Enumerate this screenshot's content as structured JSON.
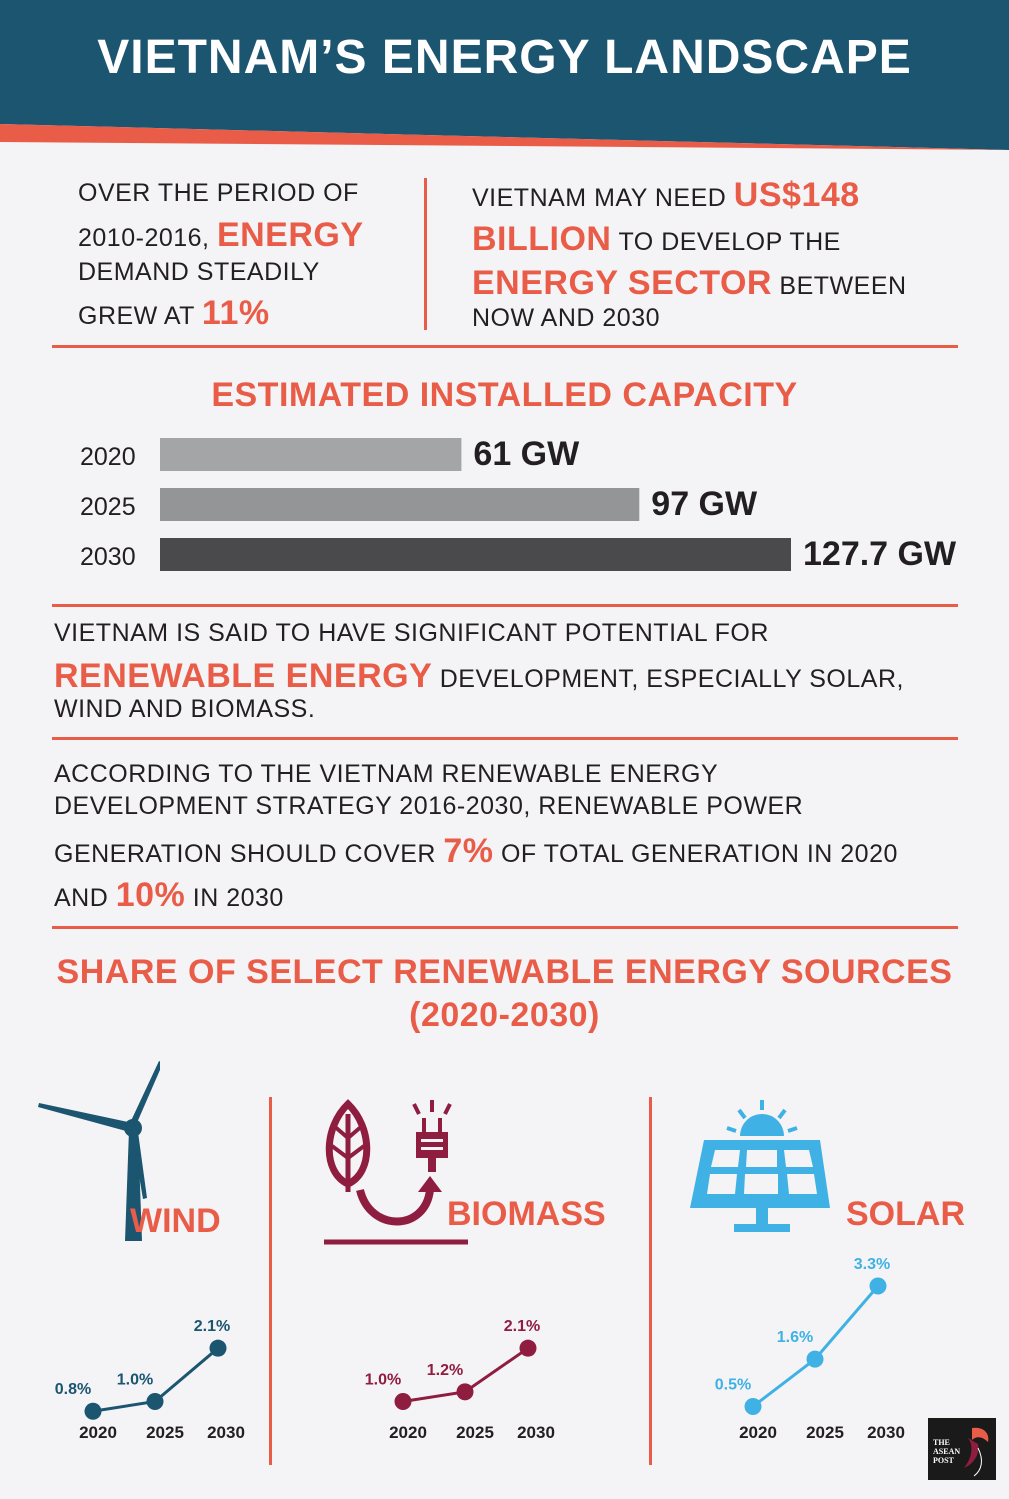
{
  "header": {
    "title": "VIETNAM’S ENERGY LANDSCAPE"
  },
  "facts": {
    "left": {
      "line1": "OVER THE PERIOD OF",
      "line2_pre": "2010-2016, ",
      "line2_acc": "ENERGY",
      "line3": "DEMAND STEADILY",
      "line4_pre": "GREW AT ",
      "line4_acc": "11%"
    },
    "right": {
      "line1_pre": "VIETNAM MAY NEED ",
      "line1_acc": "US$148",
      "line2_acc": "BILLION",
      "line2_post": " TO DEVELOP THE",
      "line3_acc": "ENERGY SECTOR",
      "line3_post": " BETWEEN",
      "line4": "NOW AND 2030"
    }
  },
  "capacity": {
    "title": "ESTIMATED INSTALLED CAPACITY"
  },
  "renewable": {
    "line1": "VIETNAM IS SAID TO HAVE SIGNIFICANT POTENTIAL FOR",
    "line2_acc": "RENEWABLE ENERGY",
    "line2_post": " DEVELOPMENT, ESPECIALLY SOLAR,",
    "line3": "WIND AND BIOMASS."
  },
  "strategy": {
    "line1": "ACCORDING TO THE VIETNAM RENEWABLE ENERGY",
    "line2": "DEVELOPMENT STRATEGY 2016-2030, RENEWABLE POWER",
    "line3_pre": "GENERATION SHOULD COVER ",
    "line3_acc": "7%",
    "line3_post": " OF TOTAL GENERATION IN 2020",
    "line4_pre": "AND ",
    "line4_acc": "10%",
    "line4_post": " IN 2030"
  },
  "share": {
    "title_line1": "SHARE OF SELECT RENEWABLE ENERGY SOURCES",
    "title_line2": "(2020-2030)"
  },
  "colors": {
    "header_bg": "#1b5570",
    "accent": "#e95d48",
    "bar_2020": "#a3a5a7",
    "bar_2025": "#939597",
    "bar_2030": "#4a4a4c",
    "wind": "#1b5570",
    "biomass": "#8f1d3f",
    "solar": "#3fb1e4"
  },
  "logo": {
    "text": "THE ASEAN POST"
  },
  "chart_data": [
    {
      "type": "bar",
      "orientation": "horizontal",
      "title": "ESTIMATED INSTALLED CAPACITY",
      "categories": [
        "2020",
        "2025",
        "2030"
      ],
      "values": [
        61,
        97,
        127.7
      ],
      "labels": [
        "61 GW",
        "97 GW",
        "127.7 GW"
      ],
      "unit": "GW",
      "xlim": [
        0,
        127.7
      ]
    },
    {
      "type": "line",
      "title": "WIND",
      "x": [
        "2020",
        "2025",
        "2030"
      ],
      "values": [
        0.8,
        1.0,
        2.1
      ],
      "labels": [
        "0.8%",
        "1.0%",
        "2.1%"
      ],
      "unit": "%",
      "ylim": [
        0,
        3.3
      ]
    },
    {
      "type": "line",
      "title": "BIOMASS",
      "x": [
        "2020",
        "2025",
        "2030"
      ],
      "values": [
        1.0,
        1.2,
        2.1
      ],
      "labels": [
        "1.0%",
        "1.2%",
        "2.1%"
      ],
      "unit": "%",
      "ylim": [
        0,
        3.3
      ]
    },
    {
      "type": "line",
      "title": "SOLAR",
      "x": [
        "2020",
        "2025",
        "2030"
      ],
      "values": [
        0.5,
        1.6,
        3.3
      ],
      "labels": [
        "0.5%",
        "1.6%",
        "3.3%"
      ],
      "unit": "%",
      "ylim": [
        0,
        3.3
      ]
    }
  ]
}
